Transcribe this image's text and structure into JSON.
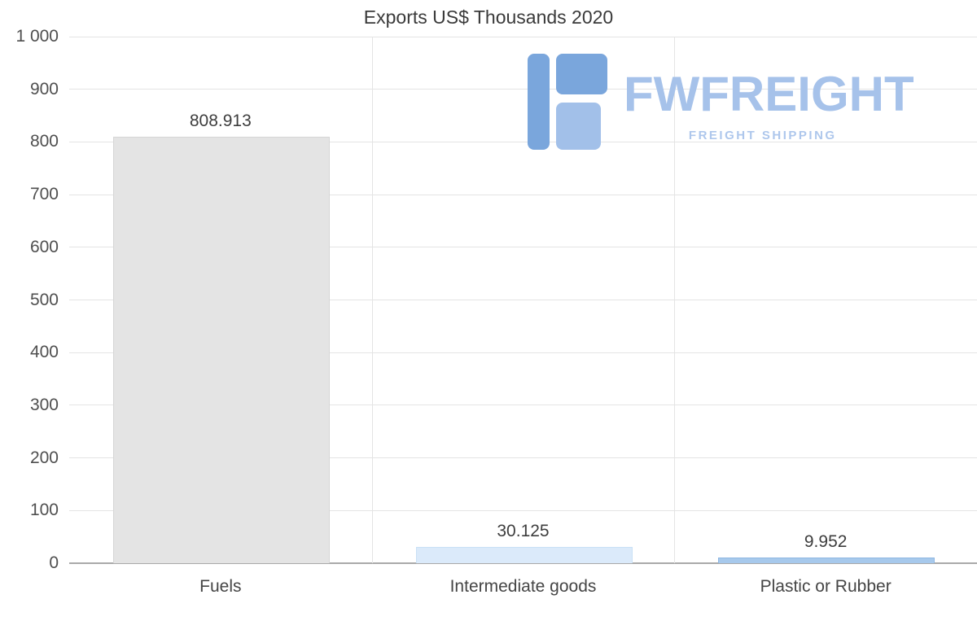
{
  "page": {
    "background": "#ffffff"
  },
  "chart_data": {
    "type": "bar",
    "title": "Exports US$ Thousands 2020",
    "categories": [
      "Fuels",
      "Intermediate goods",
      "Plastic or Rubber"
    ],
    "values": [
      808.913,
      30.125,
      9.952
    ],
    "value_labels": [
      "808.913",
      "30.125",
      "9.952"
    ],
    "ylim": [
      0,
      1000
    ],
    "ytick_interval": 100,
    "ytick_labels": [
      "0",
      "100",
      "200",
      "300",
      "400",
      "500",
      "600",
      "700",
      "800",
      "900",
      "1 000"
    ],
    "grid": true,
    "legend": false,
    "xlabel": "",
    "ylabel": "",
    "bar_colors": [
      "#e4e4e4",
      "#dbeafa",
      "#a7c9ec"
    ],
    "bar_border_colors": [
      "#d6d6d6",
      "#c9e0f5",
      "#8fb7e2"
    ]
  },
  "watermark": {
    "brand": "FWFREIGHT",
    "tagline": "FREIGHT SHIPPING",
    "brand_color": "#a6c2ea",
    "tagline_color": "#aec7ec",
    "icon_color": "#7aa6dc",
    "icon_color_light": "#a2c0e9"
  }
}
